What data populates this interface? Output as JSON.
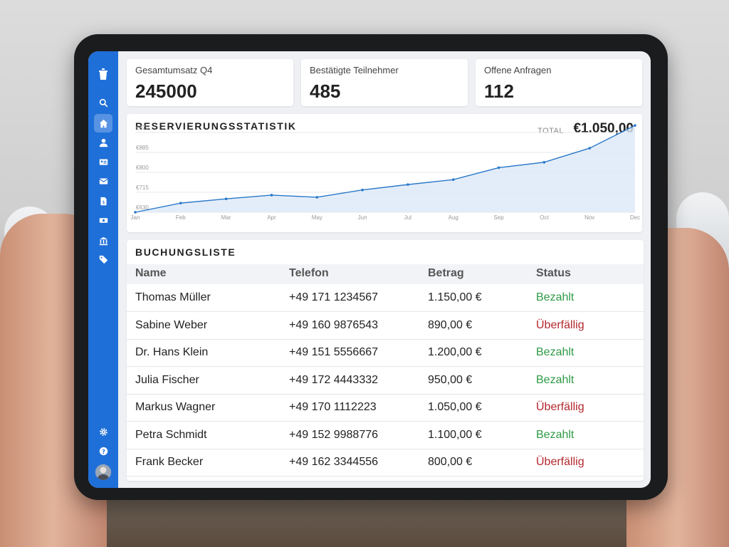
{
  "stats": [
    {
      "label": "Gesamtumsatz Q4",
      "value": "245000"
    },
    {
      "label": "Bestätigte Teilnehmer",
      "value": "485"
    },
    {
      "label": "Offene Anfragen",
      "value": "112"
    }
  ],
  "chart_section": {
    "title": "RESERVIERUNGSSTATISTIK",
    "total_label": "TOTAL",
    "total_value": "€1.050,00"
  },
  "chart_data": {
    "type": "area",
    "title": "",
    "xlabel": "",
    "ylabel": "",
    "categories": [
      "Jan",
      "Feb",
      "Mar",
      "Apr",
      "May",
      "Jun",
      "Jul",
      "Aug",
      "Sep",
      "Oct",
      "Nov",
      "Dec"
    ],
    "series": [
      {
        "values": [
          630,
          669,
          687,
          703,
          694,
          725,
          748,
          769,
          820,
          843,
          903,
          1000
        ]
      }
    ],
    "y_ticks": [
      "€630",
      "€715",
      "€800",
      "€885",
      "€970"
    ],
    "ylim": [
      630,
      970
    ],
    "grid": true,
    "color": "#2a78c9"
  },
  "table": {
    "title": "BUCHUNGSLISTE",
    "columns": [
      "Name",
      "Telefon",
      "Betrag",
      "Status"
    ],
    "rows": [
      {
        "name": "Thomas Müller",
        "phone": "+49 171 1234567",
        "amount": "1.150,00 €",
        "status": "Bezahlt",
        "paid": true
      },
      {
        "name": "Sabine Weber",
        "phone": "+49 160 9876543",
        "amount": "890,00 €",
        "status": "Überfällig",
        "paid": false
      },
      {
        "name": "Dr. Hans Klein",
        "phone": "+49 151 5556667",
        "amount": "1.200,00 €",
        "status": "Bezahlt",
        "paid": true
      },
      {
        "name": "Julia Fischer",
        "phone": "+49 172 4443332",
        "amount": "950,00 €",
        "status": "Bezahlt",
        "paid": true
      },
      {
        "name": "Markus Wagner",
        "phone": "+49 170 1112223",
        "amount": "1.050,00 €",
        "status": "Überfällig",
        "paid": false
      },
      {
        "name": "Petra Schmidt",
        "phone": "+49 152 9988776",
        "amount": "1.100,00 €",
        "status": "Bezahlt",
        "paid": true
      },
      {
        "name": "Frank Becker",
        "phone": "+49 162 3344556",
        "amount": "800,00 €",
        "status": "Überfällig",
        "paid": false
      }
    ]
  },
  "sidebar": {
    "icons": [
      "logo-icon",
      "search-icon",
      "home-icon",
      "user-icon",
      "contact-card-icon",
      "mail-icon",
      "document-dollar-icon",
      "money-icon",
      "bank-icon",
      "tag-icon",
      "gear-icon",
      "help-icon",
      "avatar"
    ],
    "active": "home-icon"
  },
  "colors": {
    "accent": "#1f6fd8",
    "paid": "#2e9a45",
    "overdue": "#b3272d"
  }
}
